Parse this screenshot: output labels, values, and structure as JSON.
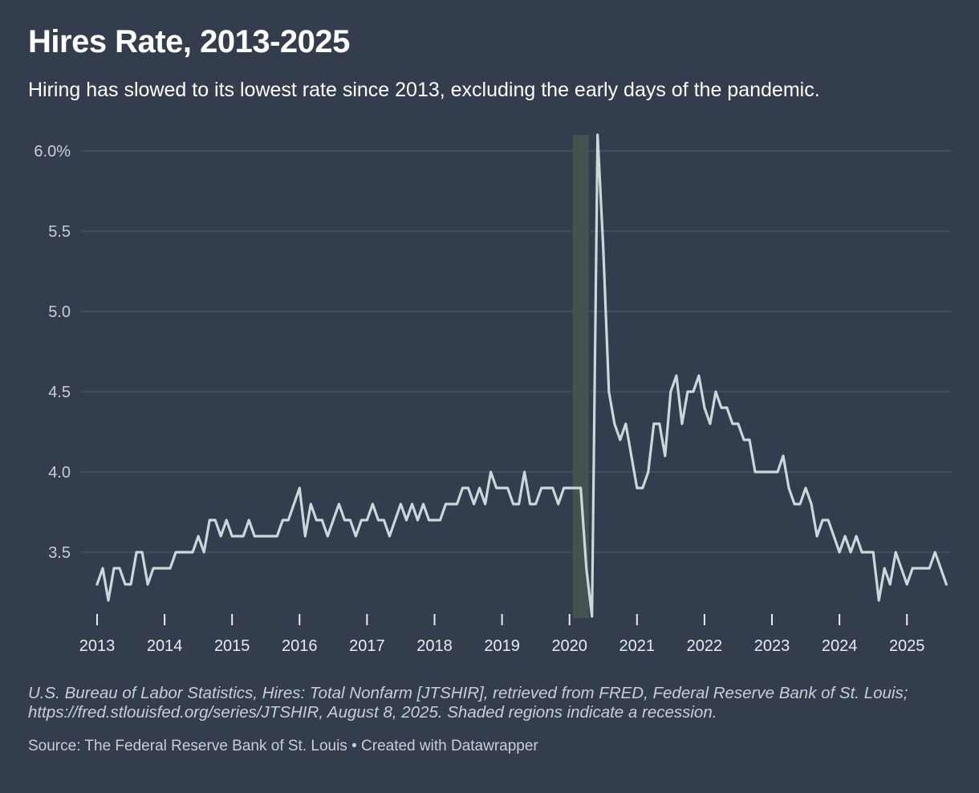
{
  "header": {
    "title": "Hires Rate, 2013-2025",
    "subtitle": "Hiring has slowed to its lowest rate since 2013, excluding the early days of the pandemic."
  },
  "notes": "U.S. Bureau of Labor Statistics, Hires: Total Nonfarm [JTSHIR], retrieved from FRED, Federal Reserve Bank of St. Louis; https://fred.stlouisfed.org/series/JTSHIR, August 8, 2025. Shaded regions indicate a recession.",
  "footer": {
    "source": "Source: The Federal Reserve Bank of St. Louis",
    "separator": "•",
    "credit": "Created with Datawrapper"
  },
  "colors": {
    "background": "#333d4d",
    "line": "#c9d8d8",
    "grid": "#4b5566",
    "recession": "#46524f"
  },
  "chart_data": {
    "type": "line",
    "title": "Hires Rate, 2013-2025",
    "xlabel": "",
    "ylabel": "",
    "ylim": [
      3.1,
      6.1
    ],
    "y_ticks": [
      {
        "value": 6.0,
        "label": "6.0%"
      },
      {
        "value": 5.5,
        "label": "5.5"
      },
      {
        "value": 5.0,
        "label": "5.0"
      },
      {
        "value": 4.5,
        "label": "4.5"
      },
      {
        "value": 4.0,
        "label": "4.0"
      },
      {
        "value": 3.5,
        "label": "3.5"
      }
    ],
    "x_ticks": [
      "2013",
      "2014",
      "2015",
      "2016",
      "2017",
      "2018",
      "2019",
      "2020",
      "2021",
      "2022",
      "2023",
      "2024",
      "2025"
    ],
    "x_start": "2013-01",
    "grid": true,
    "legend": "none",
    "recession": {
      "start": "2020-02",
      "end": "2020-04"
    },
    "series": [
      {
        "values": [
          3.3,
          3.4,
          3.2,
          3.4,
          3.4,
          3.3,
          3.3,
          3.5,
          3.5,
          3.3,
          3.4,
          3.4,
          3.4,
          3.4,
          3.5,
          3.5,
          3.5,
          3.5,
          3.6,
          3.5,
          3.7,
          3.7,
          3.6,
          3.7,
          3.6,
          3.6,
          3.6,
          3.7,
          3.6,
          3.6,
          3.6,
          3.6,
          3.6,
          3.7,
          3.7,
          3.8,
          3.9,
          3.6,
          3.8,
          3.7,
          3.7,
          3.6,
          3.7,
          3.8,
          3.7,
          3.7,
          3.6,
          3.7,
          3.7,
          3.8,
          3.7,
          3.7,
          3.6,
          3.7,
          3.8,
          3.7,
          3.8,
          3.7,
          3.8,
          3.7,
          3.7,
          3.7,
          3.8,
          3.8,
          3.8,
          3.9,
          3.9,
          3.8,
          3.9,
          3.8,
          4.0,
          3.9,
          3.9,
          3.9,
          3.8,
          3.8,
          4.0,
          3.8,
          3.8,
          3.9,
          3.9,
          3.9,
          3.8,
          3.9,
          3.9,
          3.9,
          3.9,
          3.4,
          3.1,
          6.1,
          5.4,
          4.5,
          4.3,
          4.2,
          4.3,
          4.1,
          3.9,
          3.9,
          4.0,
          4.3,
          4.3,
          4.1,
          4.5,
          4.6,
          4.3,
          4.5,
          4.5,
          4.6,
          4.4,
          4.3,
          4.5,
          4.4,
          4.4,
          4.3,
          4.3,
          4.2,
          4.2,
          4.0,
          4.0,
          4.0,
          4.0,
          4.0,
          4.1,
          3.9,
          3.8,
          3.8,
          3.9,
          3.8,
          3.6,
          3.7,
          3.7,
          3.6,
          3.5,
          3.6,
          3.5,
          3.6,
          3.5,
          3.5,
          3.5,
          3.2,
          3.4,
          3.3,
          3.5,
          3.4,
          3.3,
          3.4,
          3.4,
          3.4,
          3.4,
          3.5,
          3.4,
          3.3
        ]
      }
    ]
  }
}
